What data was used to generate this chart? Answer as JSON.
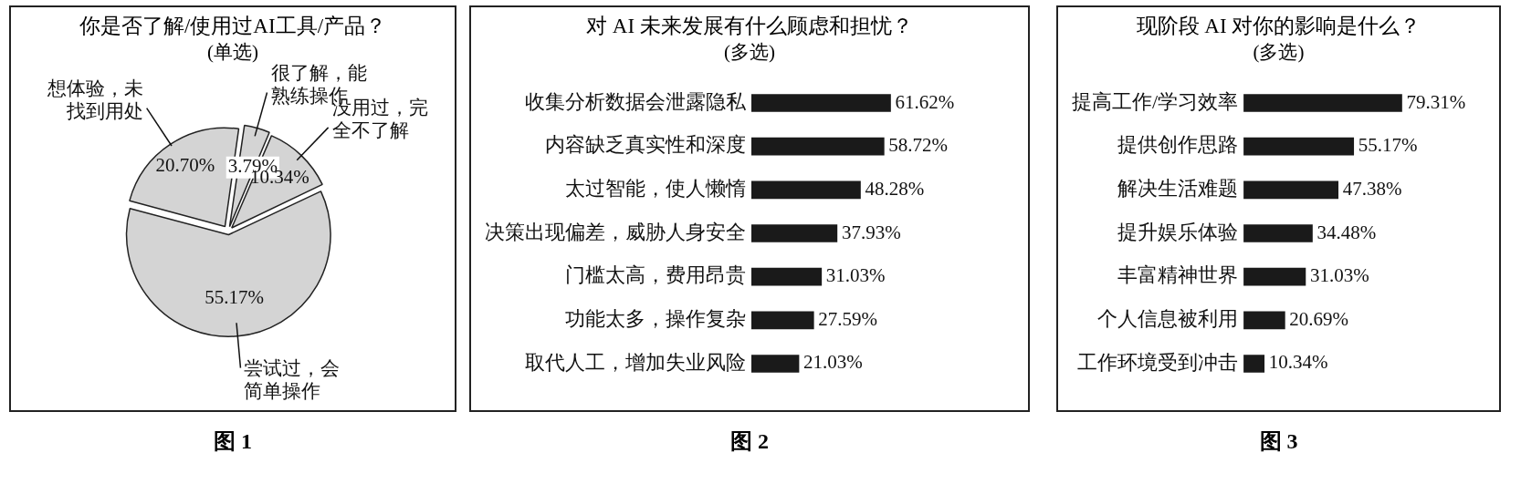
{
  "chart_data": [
    {
      "type": "pie",
      "title": "你是否了解/使用过AI工具/产品？",
      "subtitle": "(单选)",
      "categories": [
        "很了解，能熟练操作",
        "没用过，完全不了解",
        "尝试过，会简单操作",
        "想体验，未找到用处"
      ],
      "values": [
        3.79,
        10.34,
        55.17,
        20.7
      ],
      "value_labels": [
        "3.79%",
        "10.34%",
        "55.17%",
        "20.70%"
      ],
      "colors": [
        "#d4d4d4",
        "#d4d4d4",
        "#d4d4d4",
        "#d4d4d4"
      ],
      "annotations": [
        "图 1"
      ]
    },
    {
      "type": "bar",
      "orientation": "horizontal",
      "title": "对 AI 未来发展有什么顾虑和担忧？",
      "subtitle": "(多选)",
      "categories": [
        "收集分析数据会泄露隐私",
        "内容缺乏真实性和深度",
        "太过智能，使人懒惰",
        "决策出现偏差，威胁人身安全",
        "门槛太高，费用昂贵",
        "功能太多，操作复杂",
        "取代人工，增加失业风险"
      ],
      "values": [
        61.62,
        58.72,
        48.28,
        37.93,
        31.03,
        27.59,
        21.03
      ],
      "value_labels": [
        "61.62%",
        "58.72%",
        "48.28%",
        "37.93%",
        "31.03%",
        "27.59%",
        "21.03%"
      ],
      "color": "#1a1a1a",
      "tick_labels": "y",
      "grid": false,
      "annotations": [
        "图 2"
      ]
    },
    {
      "type": "bar",
      "orientation": "horizontal",
      "title": "现阶段 AI 对你的影响是什么？",
      "subtitle": "(多选)",
      "categories": [
        "提高工作/学习效率",
        "提供创作思路",
        "解决生活难题",
        "提升娱乐体验",
        "丰富精神世界",
        "个人信息被利用",
        "工作环境受到冲击"
      ],
      "values": [
        79.31,
        55.17,
        47.38,
        34.48,
        31.03,
        20.69,
        10.34
      ],
      "value_labels": [
        "79.31%",
        "55.17%",
        "47.38%",
        "34.48%",
        "31.03%",
        "20.69%",
        "10.34%"
      ],
      "color": "#1a1a1a",
      "tick_labels": "y",
      "grid": false,
      "annotations": [
        "图 3"
      ]
    }
  ]
}
